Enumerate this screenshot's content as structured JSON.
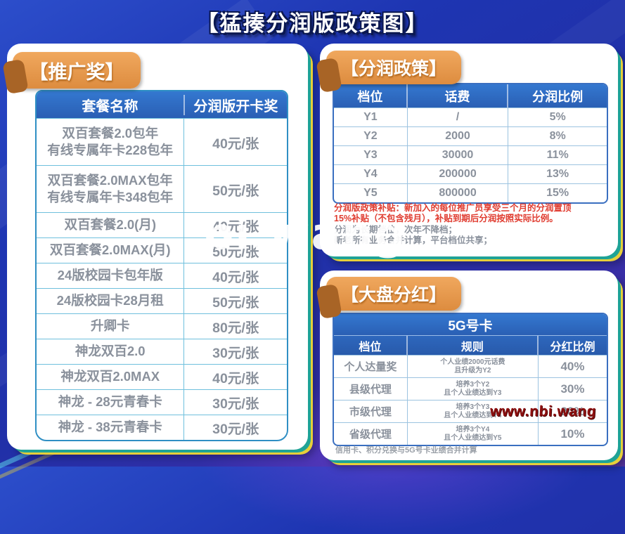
{
  "page": {
    "title": "【猛揍分润版政策图】"
  },
  "watermarks": {
    "center": "bi.wang",
    "corner": "www.nbi.wang"
  },
  "colors": {
    "background_blue": "#1e35b2",
    "table_header_blue": "#2e6ec5",
    "badge_orange": "#e2924b",
    "accent_teal": "#1fa396",
    "accent_yellow": "#e6cf3a",
    "note_red": "#e03c30",
    "cell_gray": "#8a919c"
  },
  "promo_panel": {
    "badge": "【推广奖】",
    "table": {
      "headers": [
        "套餐名称",
        "分润版开卡奖"
      ],
      "rows": [
        {
          "lines": [
            "双百套餐2.0包年",
            "有线专属年卡228包年"
          ],
          "reward": "40元/张"
        },
        {
          "lines": [
            "双百套餐2.0MAX包年",
            "有线专属年卡348包年"
          ],
          "reward": "50元/张"
        },
        {
          "lines": [
            "双百套餐2.0(月)"
          ],
          "reward": "40元/张"
        },
        {
          "lines": [
            "双百套餐2.0MAX(月)"
          ],
          "reward": "50元/张"
        },
        {
          "lines": [
            "24版校园卡包年版"
          ],
          "reward": "40元/张"
        },
        {
          "lines": [
            "24版校园卡28月租"
          ],
          "reward": "50元/张"
        },
        {
          "lines": [
            "升卿卡"
          ],
          "reward": "80元/张"
        },
        {
          "lines": [
            "神龙双百2.0"
          ],
          "reward": "30元/张"
        },
        {
          "lines": [
            "神龙双百2.0MAX"
          ],
          "reward": "40元/张"
        },
        {
          "lines": [
            "神龙 - 28元青春卡"
          ],
          "reward": "30元/张"
        },
        {
          "lines": [
            "神龙 - 38元青春卡"
          ],
          "reward": "30元/张"
        }
      ]
    }
  },
  "profit_panel": {
    "badge": "【分润政策】",
    "table": {
      "headers": [
        "档位",
        "话费",
        "分润比例"
      ],
      "rows": [
        {
          "tier": "Y1",
          "fee": "/",
          "ratio": "5%"
        },
        {
          "tier": "Y2",
          "fee": "2000",
          "ratio": "8%"
        },
        {
          "tier": "Y3",
          "fee": "30000",
          "ratio": "11%"
        },
        {
          "tier": "Y4",
          "fee": "200000",
          "ratio": "13%"
        },
        {
          "tier": "Y5",
          "fee": "800000",
          "ratio": "15%"
        }
      ]
    },
    "notes": {
      "red_line1": "分润版政策补贴：新加入的每位推广员享受三个月的分润置顶",
      "red_line2": "15%补贴（不包含残月），补贴到期后分润按照实际比例。",
      "gray_line1": "分润为长期档位，次年不降档；",
      "gray_line2": "新老所有业务合并计算，平台档位共享；"
    }
  },
  "dividend_panel": {
    "badge": "【大盘分红】",
    "table": {
      "title": "5G号卡",
      "headers": [
        "档位",
        "规则",
        "分红比例"
      ],
      "rows": [
        {
          "tier": "个人达量奖",
          "rule_lines": [
            "个人业绩2000元话费",
            "且升级为Y2"
          ],
          "ratio": "40%"
        },
        {
          "tier": "县级代理",
          "rule_lines": [
            "培养3个Y2",
            "且个人业绩达到Y3"
          ],
          "ratio": "30%"
        },
        {
          "tier": "市级代理",
          "rule_lines": [
            "培养3个Y3",
            "且个人业绩达到Y4"
          ],
          "ratio": "20%"
        },
        {
          "tier": "省级代理",
          "rule_lines": [
            "培养3个Y4",
            "且个人业绩达到Y5"
          ],
          "ratio": "10%"
        }
      ]
    },
    "footnote": "信用卡、积分兑换与5G号卡业绩合并计算"
  }
}
